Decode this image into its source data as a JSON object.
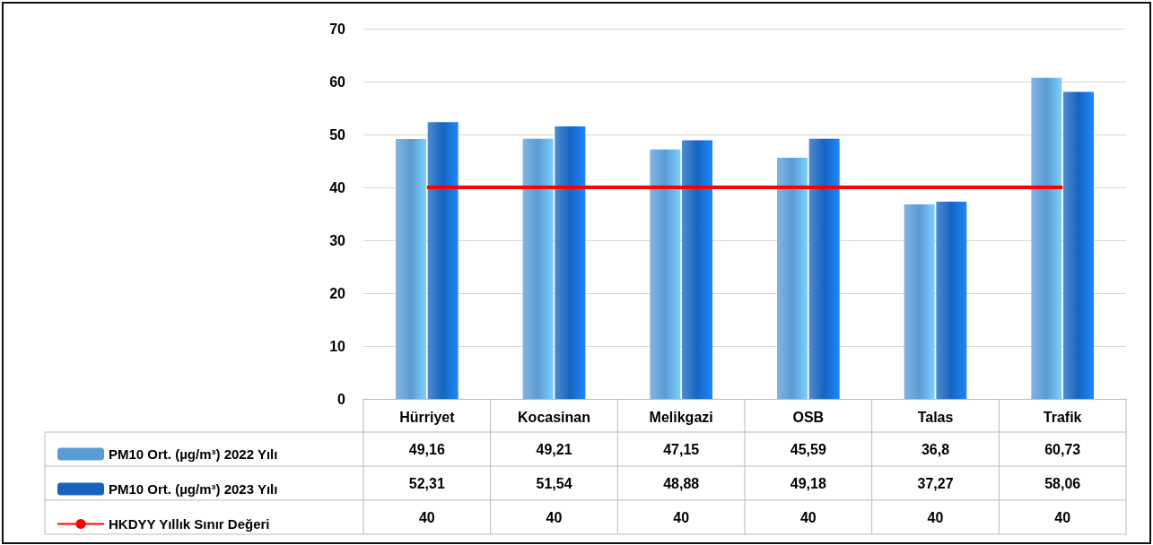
{
  "chart_data": {
    "type": "bar",
    "categories": [
      "Hürriyet",
      "Kocasinan",
      "Melikgazi",
      "OSB",
      "Talas",
      "Trafik"
    ],
    "series": [
      {
        "name": "PM10 Ort. (µg/m³) 2022 Yılı",
        "color": "#5b9bd5",
        "values": [
          49.16,
          49.21,
          47.15,
          45.59,
          36.8,
          60.73
        ],
        "value_labels": [
          "49,16",
          "49,21",
          "47,15",
          "45,59",
          "36,8",
          "60,73"
        ]
      },
      {
        "name": "PM10 Ort. (µg/m³) 2023 Yılı",
        "color": "#1565c0",
        "values": [
          52.31,
          51.54,
          48.88,
          49.18,
          37.27,
          58.06
        ],
        "value_labels": [
          "52,31",
          "51,54",
          "48,88",
          "49,18",
          "37,27",
          "58,06"
        ]
      },
      {
        "name": "HKDYY Yıllık Sınır Değeri",
        "type": "line",
        "color": "#ff0000",
        "line_style": "solid",
        "values": [
          40,
          40,
          40,
          40,
          40,
          40
        ],
        "value_labels": [
          "40",
          "40",
          "40",
          "40",
          "40",
          "40"
        ]
      }
    ],
    "ylim": [
      0,
      70
    ],
    "yticks": [
      0,
      10,
      20,
      30,
      40,
      50,
      60,
      70
    ],
    "grid": "y",
    "legend": "bottom left"
  }
}
